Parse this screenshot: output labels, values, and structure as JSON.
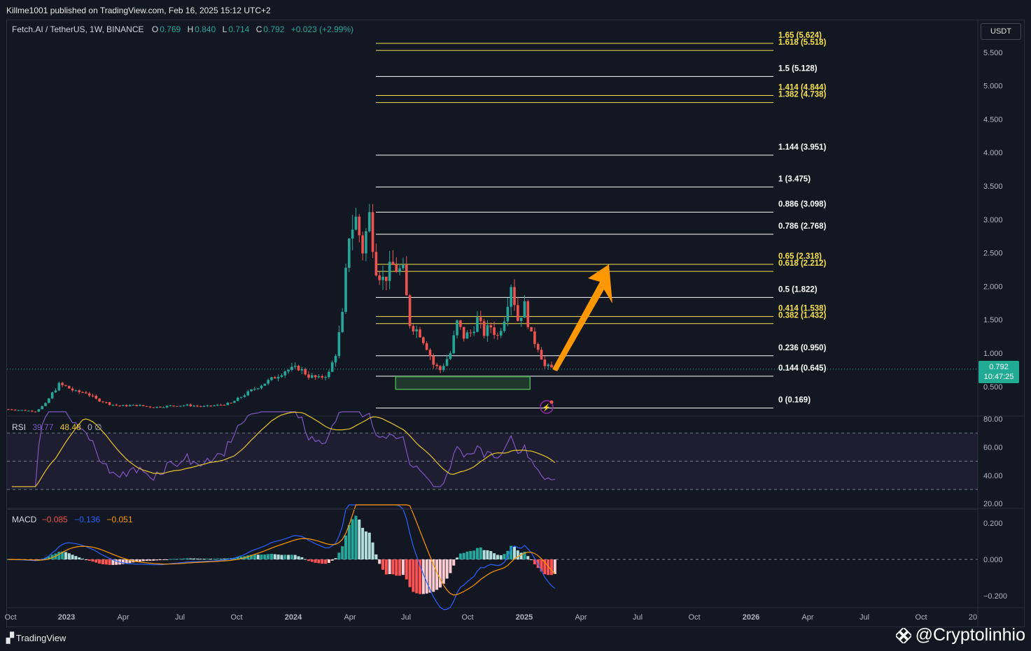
{
  "header": {
    "published": "Killme1001 published on TradingView.com, Feb 16, 2025 15:12 UTC+2"
  },
  "symbol_legend": {
    "name": "Fetch.AI / TetherUS, 1W, BINANCE",
    "o_label": "O",
    "o_value": "0.769",
    "h_label": "H",
    "h_value": "0.840",
    "l_label": "L",
    "l_value": "0.714",
    "c_label": "C",
    "c_value": "0.792",
    "change": "+0.023 (+2.99%)"
  },
  "currency": "USDT",
  "last_price": {
    "value": "0.792",
    "countdown": "10:47:25"
  },
  "rsi_legend": {
    "label": "RSI",
    "value1": "39.77",
    "value2": "48.48",
    "extra": "0 ∅"
  },
  "macd_legend": {
    "label": "MACD",
    "hist": "−0.085",
    "macd": "−0.136",
    "signal": "−0.051"
  },
  "colors": {
    "bg": "#131722",
    "up": "#26a69a",
    "down": "#ef5350",
    "fib_white": "#ffffff",
    "fib_yellow": "#f5e050",
    "zone": "#4caf50",
    "arrow": "#ff9800",
    "rsi": "#7e57c2",
    "rsi_ma": "#e8c52a",
    "macd": "#2962ff",
    "signal": "#ff9800"
  },
  "price_axis": [
    "5.500",
    "5.000",
    "4.500",
    "4.000",
    "3.500",
    "3.000",
    "2.500",
    "2.000",
    "1.500",
    "1.000",
    "0.500"
  ],
  "rsi_axis": [
    "80.00",
    "60.00",
    "40.00",
    "20.00"
  ],
  "macd_axis": [
    "0.200",
    "0.000",
    "−0.200"
  ],
  "time_axis": [
    "Oct",
    "2023",
    "Apr",
    "Jul",
    "Oct",
    "2024",
    "Apr",
    "Jul",
    "Oct",
    "2025",
    "Apr",
    "Jul",
    "Oct",
    "2026",
    "Apr",
    "Jul",
    "Oct",
    "20"
  ],
  "footer": {
    "logo_text": "TradingView",
    "watermark": "@Cryptolinhio"
  },
  "chart_data": {
    "type": "candlestick",
    "symbol": "Fetch.AI / TetherUS",
    "interval": "1W",
    "ylim": [
      0.1,
      5.75
    ],
    "fib_levels": [
      {
        "label": "1.65 (5.624)",
        "price": 5.624,
        "color": "yellow"
      },
      {
        "label": "1.618 (5.518)",
        "price": 5.518,
        "color": "yellow"
      },
      {
        "label": "1.5 (5.128)",
        "price": 5.128,
        "color": "white"
      },
      {
        "label": "1.414 (4.844)",
        "price": 4.844,
        "color": "yellow"
      },
      {
        "label": "1.382 (4.738)",
        "price": 4.738,
        "color": "yellow"
      },
      {
        "label": "1.144 (3.951)",
        "price": 3.951,
        "color": "white"
      },
      {
        "label": "1 (3.475)",
        "price": 3.475,
        "color": "white"
      },
      {
        "label": "0.886 (3.098)",
        "price": 3.098,
        "color": "white"
      },
      {
        "label": "0.786 (2.768)",
        "price": 2.768,
        "color": "white"
      },
      {
        "label": "0.65 (2.318)",
        "price": 2.318,
        "color": "yellow"
      },
      {
        "label": "0.618 (2.212)",
        "price": 2.212,
        "color": "yellow"
      },
      {
        "label": "0.5 (1.822)",
        "price": 1.822,
        "color": "white"
      },
      {
        "label": "0.414 (1.538)",
        "price": 1.538,
        "color": "yellow"
      },
      {
        "label": "0.382 (1.432)",
        "price": 1.432,
        "color": "yellow"
      },
      {
        "label": "0.236 (0.950)",
        "price": 0.95,
        "color": "white"
      },
      {
        "label": "0.144 (0.645)",
        "price": 0.645,
        "color": "white"
      },
      {
        "label": "0 (0.169)",
        "price": 0.169,
        "color": "white"
      }
    ],
    "support_zone": {
      "from": 0.48,
      "to": 0.7,
      "start_week": 115,
      "end_week": 154
    },
    "price_path": [
      [
        0,
        0.16
      ],
      [
        8,
        0.13
      ],
      [
        11,
        0.24
      ],
      [
        13,
        0.4
      ],
      [
        15,
        0.53
      ],
      [
        17,
        0.5
      ],
      [
        20,
        0.42
      ],
      [
        23,
        0.41
      ],
      [
        26,
        0.31
      ],
      [
        30,
        0.24
      ],
      [
        33,
        0.21
      ],
      [
        38,
        0.22
      ],
      [
        43,
        0.19
      ],
      [
        48,
        0.21
      ],
      [
        53,
        0.22
      ],
      [
        58,
        0.2
      ],
      [
        62,
        0.22
      ],
      [
        66,
        0.25
      ],
      [
        70,
        0.38
      ],
      [
        74,
        0.5
      ],
      [
        78,
        0.61
      ],
      [
        82,
        0.74
      ],
      [
        86,
        0.78
      ],
      [
        89,
        0.66
      ],
      [
        92,
        0.62
      ],
      [
        95,
        0.7
      ],
      [
        97,
        1.0
      ],
      [
        99,
        1.55
      ],
      [
        101,
        2.8
      ],
      [
        103,
        3.0
      ],
      [
        105,
        2.55
      ],
      [
        107,
        3.05
      ],
      [
        109,
        2.3
      ],
      [
        111,
        2.1
      ],
      [
        114,
        2.3
      ],
      [
        117,
        2.2
      ],
      [
        119,
        1.45
      ],
      [
        122,
        1.3
      ],
      [
        124,
        1.1
      ],
      [
        126,
        0.83
      ],
      [
        128,
        0.75
      ],
      [
        131,
        1.0
      ],
      [
        133,
        1.45
      ],
      [
        135,
        1.25
      ],
      [
        137,
        1.3
      ],
      [
        139,
        1.5
      ],
      [
        141,
        1.3
      ],
      [
        143,
        1.4
      ],
      [
        145,
        1.25
      ],
      [
        147,
        1.55
      ],
      [
        149,
        2.05
      ],
      [
        151,
        1.5
      ],
      [
        153,
        1.7
      ],
      [
        155,
        1.25
      ],
      [
        157,
        1.1
      ],
      [
        159,
        0.8
      ],
      [
        161,
        0.77
      ],
      [
        162,
        0.79
      ]
    ]
  }
}
